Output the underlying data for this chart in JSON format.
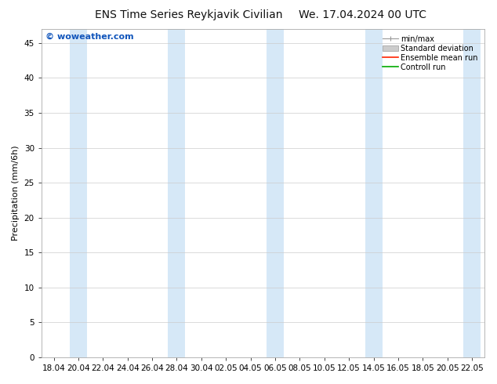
{
  "title_left": "ENS Time Series Reykjavik Civilian",
  "title_right": "We. 17.04.2024 00 UTC",
  "ylabel": "Precipitation (mm/6h)",
  "watermark": "© woweather.com",
  "watermark_color": "#1155bb",
  "ylim": [
    0,
    47
  ],
  "yticks": [
    0,
    5,
    10,
    15,
    20,
    25,
    30,
    35,
    40,
    45
  ],
  "x_labels": [
    "18.04",
    "20.04",
    "22.04",
    "24.04",
    "26.04",
    "28.04",
    "30.04",
    "02.05",
    "04.05",
    "06.05",
    "08.05",
    "10.05",
    "12.05",
    "14.05",
    "16.05",
    "18.05",
    "20.05",
    "22.05"
  ],
  "band_color": "#d6e8f7",
  "band_alpha": 1.0,
  "legend_entries": [
    "min/max",
    "Standard deviation",
    "Ensemble mean run",
    "Controll run"
  ],
  "legend_colors_line": [
    "#999999",
    "#cccccc",
    "#ff2200",
    "#00aa00"
  ],
  "background_color": "#ffffff",
  "title_fontsize": 10,
  "axis_label_fontsize": 8,
  "tick_fontsize": 7.5,
  "watermark_fontsize": 8
}
